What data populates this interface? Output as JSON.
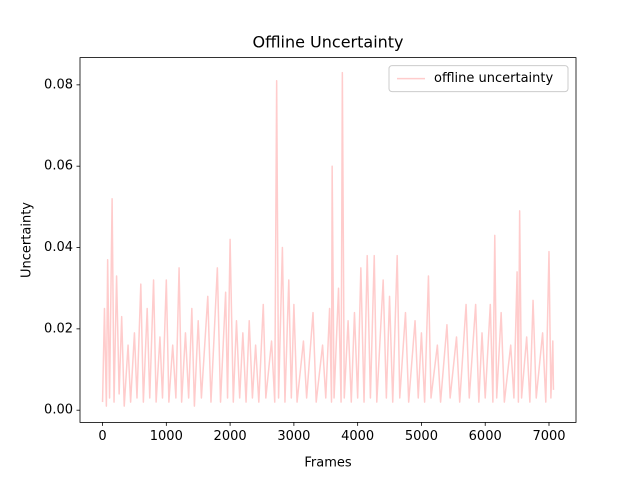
{
  "chart_data": {
    "type": "line",
    "title": "Offline Uncertainty",
    "xlabel": "Frames",
    "ylabel": "Uncertainty",
    "x": [
      0,
      30,
      60,
      80,
      110,
      150,
      180,
      220,
      260,
      300,
      340,
      400,
      440,
      500,
      540,
      600,
      640,
      700,
      740,
      800,
      840,
      900,
      940,
      1000,
      1040,
      1100,
      1150,
      1200,
      1240,
      1300,
      1350,
      1400,
      1440,
      1500,
      1550,
      1650,
      1700,
      1800,
      1850,
      1930,
      1960,
      2000,
      2050,
      2100,
      2150,
      2200,
      2250,
      2300,
      2350,
      2400,
      2450,
      2520,
      2560,
      2650,
      2700,
      2730,
      2760,
      2820,
      2860,
      2920,
      2960,
      3000,
      3050,
      3150,
      3200,
      3300,
      3350,
      3450,
      3500,
      3560,
      3590,
      3600,
      3630,
      3700,
      3740,
      3760,
      3790,
      3850,
      3900,
      3950,
      4000,
      4050,
      4100,
      4150,
      4200,
      4260,
      4300,
      4400,
      4450,
      4500,
      4550,
      4620,
      4660,
      4750,
      4800,
      4900,
      4950,
      5000,
      5050,
      5110,
      5150,
      5250,
      5300,
      5400,
      5450,
      5550,
      5600,
      5700,
      5750,
      5850,
      5900,
      5950,
      6000,
      6080,
      6120,
      6150,
      6180,
      6250,
      6300,
      6400,
      6450,
      6500,
      6520,
      6540,
      6570,
      6650,
      6700,
      6750,
      6800,
      6900,
      6950,
      7000,
      7030,
      7060,
      7070
    ],
    "series": [
      {
        "name": "offline uncertainty",
        "color": "#ffcccc",
        "values": [
          0.002,
          0.025,
          0.001,
          0.037,
          0.003,
          0.052,
          0.002,
          0.033,
          0.004,
          0.023,
          0.001,
          0.016,
          0.002,
          0.019,
          0.003,
          0.031,
          0.002,
          0.025,
          0.003,
          0.032,
          0.002,
          0.018,
          0.003,
          0.032,
          0.002,
          0.016,
          0.003,
          0.035,
          0.002,
          0.019,
          0.003,
          0.025,
          0.001,
          0.022,
          0.003,
          0.028,
          0.002,
          0.035,
          0.002,
          0.029,
          0.003,
          0.042,
          0.002,
          0.022,
          0.003,
          0.019,
          0.002,
          0.022,
          0.003,
          0.016,
          0.002,
          0.026,
          0.003,
          0.017,
          0.002,
          0.081,
          0.003,
          0.04,
          0.002,
          0.032,
          0.003,
          0.026,
          0.002,
          0.017,
          0.003,
          0.024,
          0.002,
          0.016,
          0.003,
          0.025,
          0.002,
          0.06,
          0.003,
          0.03,
          0.002,
          0.083,
          0.003,
          0.022,
          0.002,
          0.024,
          0.003,
          0.035,
          0.002,
          0.038,
          0.003,
          0.038,
          0.002,
          0.032,
          0.003,
          0.028,
          0.002,
          0.038,
          0.003,
          0.024,
          0.002,
          0.022,
          0.003,
          0.019,
          0.002,
          0.033,
          0.003,
          0.016,
          0.002,
          0.021,
          0.003,
          0.018,
          0.002,
          0.026,
          0.003,
          0.026,
          0.002,
          0.019,
          0.003,
          0.026,
          0.002,
          0.043,
          0.003,
          0.024,
          0.002,
          0.016,
          0.003,
          0.034,
          0.002,
          0.049,
          0.003,
          0.018,
          0.002,
          0.027,
          0.003,
          0.019,
          0.002,
          0.039,
          0.003,
          0.017,
          0.005
        ]
      }
    ],
    "xlim": [
      -353.5,
      7423.5
    ],
    "ylim": [
      -0.003,
      0.0867
    ],
    "xticks": [
      0,
      1000,
      2000,
      3000,
      4000,
      5000,
      6000,
      7000
    ],
    "yticks": [
      {
        "value": 0,
        "label": "0.00"
      },
      0.02,
      0.04,
      0.06,
      0.08
    ],
    "legend": "upper right"
  }
}
